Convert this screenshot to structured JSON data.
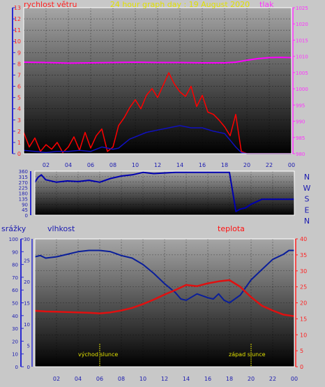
{
  "header": {
    "title": "24 hour graph day : 19 August 2020",
    "wind_label": "rychlost větru",
    "pressure_label": "tlak"
  },
  "bottom_labels": {
    "rain": "srážky",
    "humidity": "vlhkost",
    "temperature": "teplota",
    "sunrise": "východ slunce",
    "sunset": "západ slunce"
  },
  "colors": {
    "wind": "#ff0000",
    "wind_avg": "#1010c0",
    "pressure": "#ff00ff",
    "direction": "#0000b0",
    "humidity": "#0a1e9a",
    "temperature": "#e01010",
    "sun_marker": "#d8d800",
    "left_axis": "#2a2ad0",
    "right_axis": "#ff30ff",
    "temp_axis": "#ff2020",
    "frame": "#ffffff"
  },
  "chart_data": [
    {
      "type": "line",
      "name": "wind and pressure",
      "x_ticks": [
        "02",
        "04",
        "06",
        "08",
        "10",
        "12",
        "14",
        "16",
        "18",
        "20",
        "22",
        "00"
      ],
      "xlim_hours": [
        0,
        24
      ],
      "y_left": {
        "label": "rychlost větru",
        "ticks": [
          "0",
          "1",
          "2",
          "3",
          "4",
          "5",
          "6",
          "7",
          "8",
          "9",
          "10",
          "11",
          "12",
          "13"
        ],
        "ylim": [
          0,
          13
        ]
      },
      "y_right": {
        "label": "tlak",
        "ticks": [
          "980",
          "985",
          "990",
          "995",
          "1000",
          "1005",
          "1010",
          "1015",
          "1020",
          "1025"
        ],
        "ylim": [
          980,
          1025
        ]
      },
      "series": [
        {
          "name": "",
          "axis": "left",
          "hours": [
            0,
            0.5,
            1,
            1.5,
            2,
            2.5,
            3,
            3.5,
            4,
            4.5,
            5,
            5.5,
            6,
            6.5,
            7,
            7.5,
            8,
            8.5,
            9,
            9.5,
            10,
            10.5,
            11,
            11.5,
            12,
            12.5,
            13,
            13.5,
            14,
            14.5,
            15,
            15.5,
            16,
            16.5,
            17,
            17.5,
            18,
            18.5,
            19,
            19.5,
            20,
            21,
            22,
            23,
            24
          ],
          "values": [
            1.9,
            0.6,
            1.4,
            0.2,
            0.8,
            0.4,
            1.0,
            0.1,
            0.6,
            1.5,
            0.3,
            1.9,
            0.5,
            1.6,
            2.2,
            0.2,
            0.6,
            2.5,
            3.2,
            4.1,
            4.8,
            4.0,
            5.2,
            5.8,
            5.0,
            6.1,
            7.2,
            6.2,
            5.5,
            5.1,
            6.0,
            4.2,
            5.2,
            3.7,
            3.5,
            3.0,
            2.4,
            1.6,
            3.5,
            0.2,
            0.0,
            0.0,
            0.0,
            0.0,
            0.0
          ]
        },
        {
          "name": "",
          "axis": "left",
          "hours": [
            0,
            1,
            2,
            3,
            4,
            5,
            6,
            7,
            8,
            8.5,
            9,
            9.5,
            10,
            11,
            12,
            13,
            14,
            15,
            16,
            17,
            18,
            18.5,
            19,
            19.5,
            20,
            24
          ],
          "values": [
            0.3,
            0.2,
            0.1,
            0.2,
            0.2,
            0.3,
            0.2,
            0.6,
            0.4,
            0.5,
            0.9,
            1.3,
            1.5,
            1.9,
            2.1,
            2.3,
            2.5,
            2.3,
            2.3,
            2.0,
            1.8,
            1.2,
            0.6,
            0.1,
            0.0,
            0.0
          ]
        },
        {
          "name": "",
          "axis": "right",
          "hours": [
            0,
            2,
            4,
            6,
            8,
            10,
            12,
            14,
            16,
            18,
            19,
            20,
            21,
            22,
            23,
            24
          ],
          "values": [
            1008.2,
            1008.1,
            1007.9,
            1008.0,
            1008.1,
            1008.2,
            1008.1,
            1008.1,
            1008.0,
            1008.0,
            1008.2,
            1008.8,
            1009.3,
            1009.6,
            1009.7,
            1009.6
          ]
        }
      ]
    },
    {
      "type": "line",
      "name": "wind direction",
      "x_ticks": [
        "02",
        "04",
        "06",
        "08",
        "10",
        "12",
        "14",
        "16",
        "18",
        "20",
        "22",
        "00"
      ],
      "xlim_hours": [
        0,
        24
      ],
      "y_left": {
        "ticks": [
          "0",
          "45",
          "90",
          "135",
          "180",
          "225",
          "270",
          "315",
          "360"
        ],
        "ylim": [
          0,
          360
        ]
      },
      "y_right": {
        "ticks": [
          "N",
          "W",
          "S",
          "E",
          "N"
        ]
      },
      "series": [
        {
          "name": "",
          "hours": [
            0,
            0.3,
            0.6,
            1,
            2,
            3,
            4,
            5,
            6,
            7,
            8,
            9,
            10,
            11,
            12,
            13,
            14,
            15,
            16,
            17,
            18,
            18.6,
            19,
            19.5,
            20,
            21,
            22,
            23,
            24
          ],
          "values": [
            270,
            310,
            330,
            290,
            270,
            280,
            275,
            285,
            270,
            300,
            320,
            330,
            350,
            340,
            345,
            350,
            350,
            350,
            350,
            350,
            350,
            30,
            50,
            60,
            90,
            130,
            130,
            130,
            130
          ]
        }
      ]
    },
    {
      "type": "line",
      "name": "humidity and temperature",
      "x_ticks": [
        "02",
        "04",
        "06",
        "08",
        "10",
        "12",
        "14",
        "16",
        "18",
        "20",
        "22",
        "00"
      ],
      "xlim_hours": [
        0,
        24
      ],
      "y_rain": {
        "label": "srážky",
        "ticks": [
          "0",
          "10",
          "20",
          "30",
          "40",
          "50",
          "60",
          "70",
          "80",
          "90",
          "100"
        ],
        "ylim": [
          0,
          100
        ]
      },
      "y_humidity": {
        "label": "vlhkost",
        "ticks": [
          "0",
          "5",
          "10",
          "15",
          "20",
          "25",
          "30"
        ],
        "ylim": [
          0,
          30
        ]
      },
      "y_right": {
        "label": "teplota",
        "ticks": [
          "0",
          "5",
          "10",
          "15",
          "20",
          "25",
          "30",
          "35",
          "40"
        ],
        "ylim": [
          0,
          40
        ]
      },
      "sunrise_hour": 6.0,
      "sunset_hour": 20.0,
      "series": [
        {
          "name": "",
          "axis": "rain",
          "hours": [
            0,
            0.5,
            1,
            2,
            3,
            4,
            5,
            6,
            7,
            8,
            9,
            10,
            11,
            12,
            13,
            13.5,
            14,
            15,
            16,
            16.5,
            17,
            17.5,
            18,
            19,
            20,
            21,
            22,
            23,
            23.5,
            24
          ],
          "values": [
            86,
            87,
            85,
            86,
            88,
            90,
            91,
            91,
            90,
            87,
            85,
            80,
            73,
            65,
            58,
            53,
            52,
            57,
            54,
            53,
            57,
            52,
            50,
            56,
            68,
            76,
            84,
            88,
            91,
            91
          ]
        },
        {
          "name": "",
          "axis": "right",
          "hours": [
            0,
            1,
            2,
            3,
            4,
            5,
            6,
            7,
            8,
            9,
            10,
            11,
            12,
            13,
            14,
            15,
            16,
            17,
            18,
            19,
            20,
            21,
            22,
            23,
            24
          ],
          "values": [
            17.5,
            17.3,
            17.2,
            17.1,
            17.0,
            16.9,
            16.7,
            17.0,
            17.6,
            18.4,
            19.6,
            21.0,
            22.6,
            24.0,
            25.6,
            25.2,
            26.1,
            26.7,
            27.1,
            25.0,
            21.8,
            19.1,
            17.6,
            16.3,
            15.8
          ]
        }
      ]
    }
  ]
}
